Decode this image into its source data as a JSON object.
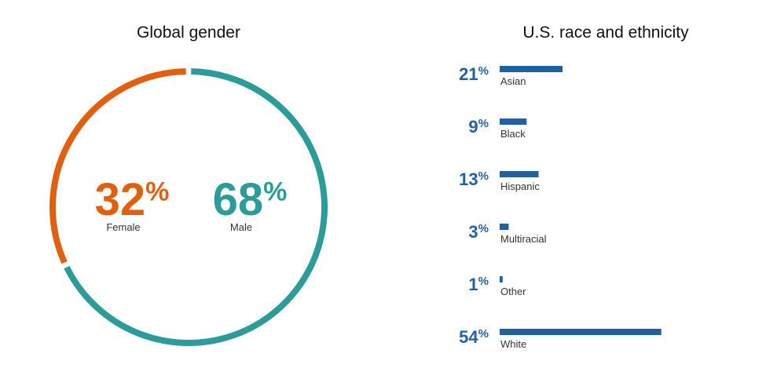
{
  "chart_data": [
    {
      "type": "donut",
      "title": "Global gender",
      "categories": [
        "Female",
        "Male"
      ],
      "values": [
        32,
        68
      ],
      "value_labels": [
        "32%",
        "68%"
      ],
      "colors": [
        "#e0600f",
        "#2b9c99"
      ]
    },
    {
      "type": "hbar",
      "title": "U.S. race and ethnicity",
      "categories": [
        "Asian",
        "Black",
        "Hispanic",
        "Multiracial",
        "Other",
        "White"
      ],
      "values": [
        21,
        9,
        13,
        3,
        1,
        54
      ],
      "value_labels": [
        "21%",
        "9%",
        "13%",
        "3%",
        "1%",
        "54%"
      ],
      "color": "#1f61a3"
    }
  ]
}
